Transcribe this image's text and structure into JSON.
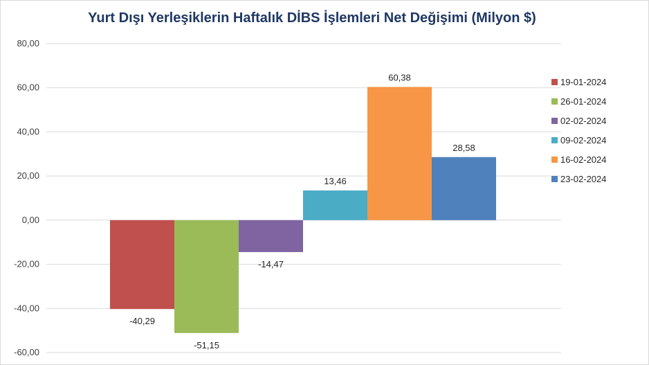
{
  "chart_data": {
    "type": "bar",
    "title": "Yurt Dışı Yerleşiklerin Haftalık DİBS İşlemleri Net Değişimi (Milyon $)",
    "xlabel": "",
    "ylabel": "",
    "ylim": [
      -60,
      80
    ],
    "yticks": [
      "80,00",
      "60,00",
      "40,00",
      "20,00",
      "0,00",
      "-20,00",
      "-40,00",
      "-60,00"
    ],
    "ytick_values": [
      80,
      60,
      40,
      20,
      0,
      -20,
      -40,
      -60
    ],
    "grid": true,
    "legend_position": "right",
    "series": [
      {
        "name": "19-01-2024",
        "value": -40.29,
        "label": "-40,29",
        "color": "#c0504d"
      },
      {
        "name": "26-01-2024",
        "value": -51.15,
        "label": "-51,15",
        "color": "#9bbb59"
      },
      {
        "name": "02-02-2024",
        "value": -14.47,
        "label": "-14,47",
        "color": "#8064a2"
      },
      {
        "name": "09-02-2024",
        "value": 13.46,
        "label": "13,46",
        "color": "#4bacc6"
      },
      {
        "name": "16-02-2024",
        "value": 60.38,
        "label": "60,38",
        "color": "#f79646"
      },
      {
        "name": "23-02-2024",
        "value": 28.58,
        "label": "28,58",
        "color": "#4f81bd"
      }
    ]
  }
}
